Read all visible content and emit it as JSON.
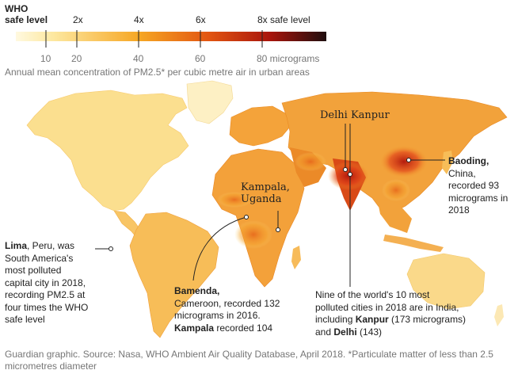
{
  "legend": {
    "who_label_line1": "WHO",
    "who_label_line2": "safe level",
    "multipliers": [
      "2x",
      "4x",
      "6x",
      "8x safe level"
    ],
    "ticks": [
      "10",
      "20",
      "40",
      "60",
      "80 micrograms"
    ],
    "gradient_colors": [
      "#fff9e0",
      "#fde8a0",
      "#f6a623",
      "#e25511",
      "#a8140c",
      "#1f0e0e"
    ],
    "subtitle": "Annual mean concentration of PM2.5* per cubic metre air in urban areas"
  },
  "labels": {
    "delhi": "Delhi",
    "kanpur": "Kanpur",
    "kampala": "Kampala,",
    "uganda": "Uganda"
  },
  "annotations": {
    "baoding": {
      "name": "Baoding,",
      "lines": [
        "China,",
        "recorded 93",
        "micrograms in",
        "2018"
      ]
    },
    "lima": {
      "name": "Lima",
      "first_rest": ", Peru, was",
      "lines": [
        "South America's",
        "most polluted",
        "capital city in 2018,",
        "recording PM2.5 at",
        "four times the WHO",
        "safe level"
      ]
    },
    "bamenda": {
      "name": "Bamenda,",
      "lines": [
        "Cameroon, recorded 132",
        "micrograms in 2016."
      ],
      "kampala_name": "Kampala",
      "kampala_rest": " recorded 104"
    },
    "india": {
      "lines": [
        "Nine of the world's 10 most",
        "polluted cities in 2018 are in India,"
      ],
      "line3_prefix": "including ",
      "kanpur": "Kanpur",
      "kanpur_rest": " (173 micrograms)",
      "line4_prefix": "and ",
      "delhi": "Delhi",
      "delhi_rest": " (143)"
    }
  },
  "footer": {
    "line1": "Guardian graphic. Source: Nasa, WHO Ambient Air Quality Database, April 2018. *Particulate matter of less than 2.5",
    "line2": "micrometres diameter"
  }
}
